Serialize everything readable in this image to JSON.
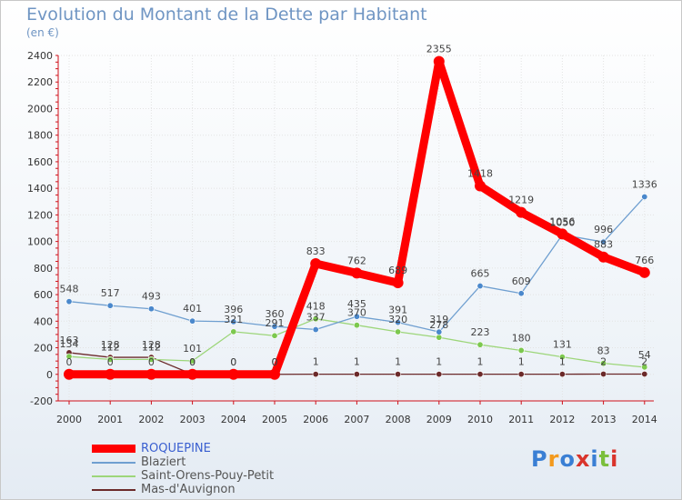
{
  "title": "Evolution du Montant de la Dette par Habitant",
  "subtitle": "(en €)",
  "logo": {
    "letters": [
      "P",
      "r",
      "o",
      "x",
      "i",
      "t",
      "i"
    ],
    "colors": [
      "#3a7fd4",
      "#f39a1d",
      "#3a7fd4",
      "#d9342b",
      "#3a7fd4",
      "#7bbf3c",
      "#d9342b"
    ]
  },
  "chart_data": {
    "type": "line",
    "title": "Evolution du Montant de la Dette par Habitant",
    "ylabel": "(en €)",
    "xlabel": "",
    "ylim": [
      -200,
      2400
    ],
    "yticks": [
      -200,
      0,
      200,
      400,
      600,
      800,
      1000,
      1200,
      1400,
      1600,
      1800,
      2000,
      2200,
      2400
    ],
    "categories": [
      "2000",
      "2001",
      "2002",
      "2003",
      "2004",
      "2005",
      "2006",
      "2007",
      "2008",
      "2009",
      "2010",
      "2011",
      "2012",
      "2013",
      "2014"
    ],
    "grid": true,
    "legend_position": "bottom-left",
    "series": [
      {
        "name": "Mas-d'Auvignon",
        "color": "#6b2a2a",
        "marker": "#6b2a2a",
        "values": [
          163,
          128,
          128,
          0,
          0,
          0,
          1,
          1,
          1,
          1,
          1,
          1,
          1,
          2,
          2
        ],
        "labels": [
          "163",
          "128",
          "128",
          "0",
          "0",
          "0",
          "1",
          "1",
          "1",
          "1",
          "1",
          "1",
          "1",
          "2",
          "2"
        ]
      },
      {
        "name": "Saint-Orens-Pouy-Petit",
        "color": "#9dd67a",
        "marker": "#7cc84e",
        "values": [
          134,
          112,
          112,
          101,
          321,
          291,
          418,
          370,
          320,
          278,
          223,
          180,
          131,
          83,
          54
        ],
        "labels": [
          "134",
          "112",
          "112",
          "101",
          "321",
          "291",
          "418",
          "370",
          "320",
          "278",
          "223",
          "180",
          "131",
          "83",
          "54"
        ]
      },
      {
        "name": "Blaziert",
        "color": "#6f9fd0",
        "marker": "#4a88cc",
        "values": [
          548,
          517,
          493,
          401,
          396,
          360,
          337,
          435,
          391,
          319,
          665,
          609,
          1050,
          996,
          1336
        ],
        "labels": [
          "548",
          "517",
          "493",
          "401",
          "396",
          "360",
          "337",
          "435",
          "391",
          "319",
          "665",
          "609",
          "1050",
          "996",
          "1336"
        ]
      },
      {
        "name": "ROQUEPINE",
        "color": "#ff0000",
        "marker": "#ff0000",
        "values": [
          0,
          0,
          0,
          0,
          0,
          0,
          833,
          762,
          689,
          2355,
          1418,
          1219,
          1056,
          883,
          766
        ],
        "labels": [
          "0",
          "0",
          "0",
          "0",
          "0",
          "0",
          "833",
          "762",
          "689",
          "2355",
          "1418",
          "1219",
          "1056",
          "883",
          "766"
        ]
      }
    ]
  },
  "legend": [
    {
      "name": "ROQUEPINE",
      "color": "#ff0000",
      "thick": true
    },
    {
      "name": "Blaziert",
      "color": "#6f9fd0",
      "thick": false
    },
    {
      "name": "Saint-Orens-Pouy-Petit",
      "color": "#9dd67a",
      "thick": false
    },
    {
      "name": "Mas-d'Auvignon",
      "color": "#6b2a2a",
      "thick": false
    }
  ]
}
